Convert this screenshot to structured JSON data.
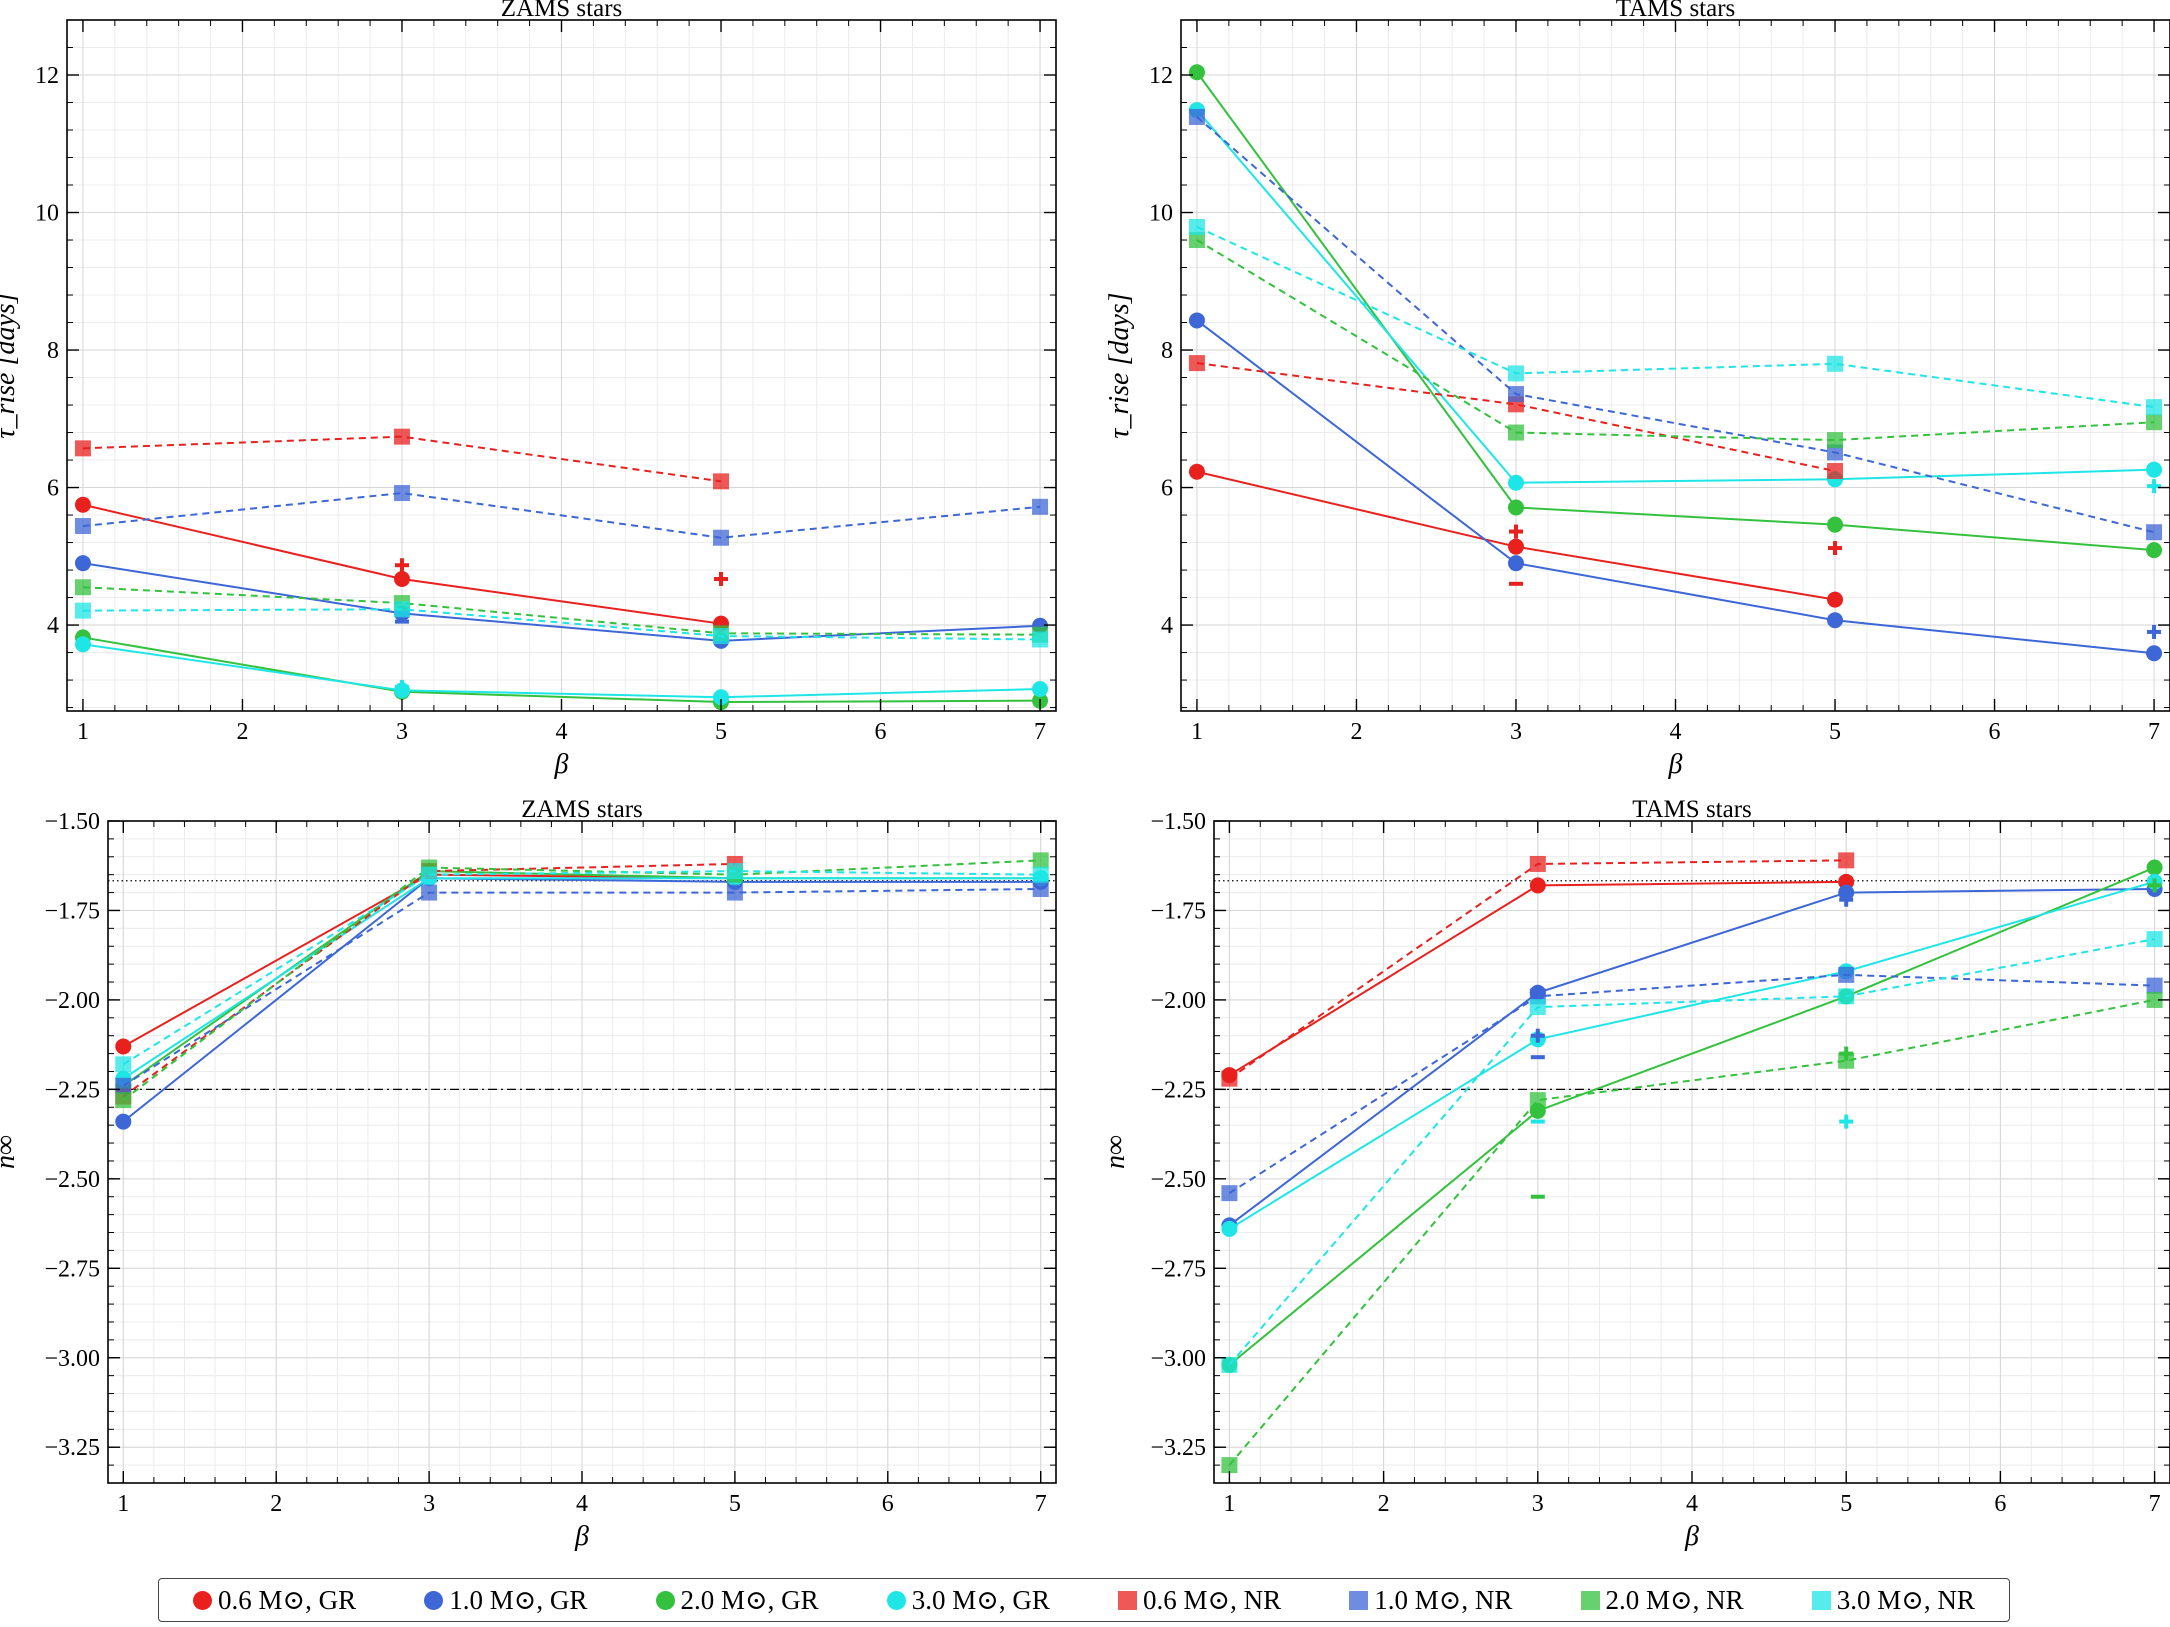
{
  "chart_data": [
    {
      "type": "line",
      "title": "ZAMS stars",
      "xlabel": "β",
      "ylabel": "τ_rise [days]",
      "xlim": [
        0.9,
        7.1
      ],
      "ylim": [
        2.75,
        12.8
      ],
      "xticks": [
        1,
        2,
        3,
        4,
        5,
        6,
        7
      ],
      "xtick_labels": [
        "1",
        "2",
        "3",
        "4",
        "5",
        "6",
        "7"
      ],
      "yticks": [
        4,
        6,
        8,
        10,
        12
      ],
      "ytick_labels": [
        "4",
        "6",
        "8",
        "10",
        "12"
      ],
      "hlines": [],
      "series": [
        {
          "name": "0.6 M⊙, GR",
          "color": "#e8201e",
          "marker": "circle",
          "linestyle": "solid",
          "x": [
            1,
            3,
            5
          ],
          "y": [
            5.75,
            4.67,
            4.02
          ]
        },
        {
          "name": "1.0 M⊙, GR",
          "color": "#3d66d6",
          "marker": "circle",
          "linestyle": "solid",
          "x": [
            1,
            3,
            5,
            7
          ],
          "y": [
            4.9,
            4.17,
            3.77,
            3.99
          ]
        },
        {
          "name": "2.0 M⊙, GR",
          "color": "#33c13e",
          "marker": "circle",
          "linestyle": "solid",
          "x": [
            1,
            3,
            5,
            7
          ],
          "y": [
            3.82,
            3.03,
            2.88,
            2.9
          ]
        },
        {
          "name": "3.0 M⊙, GR",
          "color": "#1ee6e6",
          "marker": "circle",
          "linestyle": "solid",
          "x": [
            1,
            3,
            5,
            7
          ],
          "y": [
            3.72,
            3.05,
            2.95,
            3.07
          ]
        },
        {
          "name": "0.6 M⊙, NR",
          "color": "#e8201e",
          "marker": "square",
          "linestyle": "dashed",
          "x": [
            1,
            3,
            5
          ],
          "y": [
            6.57,
            6.74,
            6.09
          ]
        },
        {
          "name": "1.0 M⊙, NR",
          "color": "#3d66d6",
          "marker": "square",
          "linestyle": "dashed",
          "x": [
            1,
            3,
            5,
            7
          ],
          "y": [
            5.44,
            5.92,
            5.27,
            5.72
          ]
        },
        {
          "name": "2.0 M⊙, NR",
          "color": "#33c13e",
          "marker": "square",
          "linestyle": "dashed",
          "x": [
            1,
            3,
            5,
            7
          ],
          "y": [
            4.55,
            4.32,
            3.88,
            3.86
          ]
        },
        {
          "name": "3.0 M⊙, NR",
          "color": "#1ee6e6",
          "marker": "square",
          "linestyle": "dashed",
          "x": [
            1,
            3,
            5,
            7
          ],
          "y": [
            4.21,
            4.23,
            3.84,
            3.79
          ]
        }
      ],
      "errors": [
        {
          "color": "#e8201e",
          "x": 3,
          "y": 4.87,
          "sym": "+"
        },
        {
          "color": "#e8201e",
          "x": 5,
          "y": 4.67,
          "sym": "+"
        },
        {
          "color": "#3d66d6",
          "x": 3,
          "y": 4.05,
          "sym": "-"
        },
        {
          "color": "#1ee6e6",
          "x": 3,
          "y": 3.1,
          "sym": "+"
        }
      ]
    },
    {
      "type": "line",
      "title": "TAMS stars",
      "xlabel": "β",
      "ylabel": "τ_rise [days]",
      "xlim": [
        0.9,
        7.1
      ],
      "ylim": [
        2.75,
        12.8
      ],
      "xticks": [
        1,
        2,
        3,
        4,
        5,
        6,
        7
      ],
      "xtick_labels": [
        "1",
        "2",
        "3",
        "4",
        "5",
        "6",
        "7"
      ],
      "yticks": [
        4,
        6,
        8,
        10,
        12
      ],
      "ytick_labels": [
        "4",
        "6",
        "8",
        "10",
        "12"
      ],
      "hlines": [],
      "series": [
        {
          "name": "0.6 M⊙, GR",
          "color": "#e8201e",
          "marker": "circle",
          "linestyle": "solid",
          "x": [
            1,
            3,
            5
          ],
          "y": [
            6.23,
            5.14,
            4.37
          ]
        },
        {
          "name": "1.0 M⊙, GR",
          "color": "#3d66d6",
          "marker": "circle",
          "linestyle": "solid",
          "x": [
            1,
            3,
            5,
            7
          ],
          "y": [
            8.43,
            4.9,
            4.07,
            3.59
          ]
        },
        {
          "name": "2.0 M⊙, GR",
          "color": "#33c13e",
          "marker": "circle",
          "linestyle": "solid",
          "x": [
            1,
            3,
            5,
            7
          ],
          "y": [
            12.04,
            5.71,
            5.46,
            5.09
          ]
        },
        {
          "name": "3.0 M⊙, GR",
          "color": "#1ee6e6",
          "marker": "circle",
          "linestyle": "solid",
          "x": [
            1,
            3,
            5,
            7
          ],
          "y": [
            11.49,
            6.07,
            6.12,
            6.26
          ]
        },
        {
          "name": "0.6 M⊙, NR",
          "color": "#e8201e",
          "marker": "square",
          "linestyle": "dashed",
          "x": [
            1,
            3,
            5
          ],
          "y": [
            7.81,
            7.21,
            6.24
          ]
        },
        {
          "name": "1.0 M⊙, NR",
          "color": "#3d66d6",
          "marker": "square",
          "linestyle": "dashed",
          "x": [
            1,
            3,
            5,
            7
          ],
          "y": [
            11.39,
            7.36,
            6.51,
            5.35
          ]
        },
        {
          "name": "2.0 M⊙, NR",
          "color": "#33c13e",
          "marker": "square",
          "linestyle": "dashed",
          "x": [
            1,
            3,
            5,
            7
          ],
          "y": [
            9.6,
            6.8,
            6.69,
            6.95
          ]
        },
        {
          "name": "3.0 M⊙, NR",
          "color": "#1ee6e6",
          "marker": "square",
          "linestyle": "dashed",
          "x": [
            1,
            3,
            5,
            7
          ],
          "y": [
            9.79,
            7.66,
            7.8,
            7.17
          ]
        }
      ],
      "errors": [
        {
          "color": "#e8201e",
          "x": 3,
          "y": 5.36,
          "sym": "+"
        },
        {
          "color": "#e8201e",
          "x": 3,
          "y": 4.6,
          "sym": "-"
        },
        {
          "color": "#e8201e",
          "x": 5,
          "y": 5.12,
          "sym": "+"
        },
        {
          "color": "#3d66d6",
          "x": 7,
          "y": 3.9,
          "sym": "+"
        },
        {
          "color": "#1ee6e6",
          "x": 7,
          "y": 6.02,
          "sym": "+"
        }
      ]
    },
    {
      "type": "line",
      "title": "ZAMS stars",
      "xlabel": "β",
      "ylabel": "n∞",
      "xlim": [
        0.9,
        7.1
      ],
      "ylim": [
        -3.35,
        -1.5
      ],
      "xticks": [
        1,
        2,
        3,
        4,
        5,
        6,
        7
      ],
      "xtick_labels": [
        "1",
        "2",
        "3",
        "4",
        "5",
        "6",
        "7"
      ],
      "yticks": [
        -1.5,
        -1.75,
        -2.0,
        -2.25,
        -2.5,
        -2.75,
        -3.0,
        -3.25
      ],
      "ytick_labels": [
        "−1.50",
        "−1.75",
        "−2.00",
        "−2.25",
        "−2.50",
        "−2.75",
        "−3.00",
        "−3.25"
      ],
      "hlines": [
        {
          "y": -1.667,
          "style": "dotted"
        },
        {
          "y": -2.25,
          "style": "dashdot"
        }
      ],
      "series": [
        {
          "name": "0.6 M⊙, GR",
          "color": "#e8201e",
          "marker": "circle",
          "linestyle": "solid",
          "x": [
            1,
            3,
            5
          ],
          "y": [
            -2.13,
            -1.65,
            -1.66
          ]
        },
        {
          "name": "1.0 M⊙, GR",
          "color": "#3d66d6",
          "marker": "circle",
          "linestyle": "solid",
          "x": [
            1,
            3,
            5,
            7
          ],
          "y": [
            -2.34,
            -1.66,
            -1.67,
            -1.67
          ]
        },
        {
          "name": "2.0 M⊙, GR",
          "color": "#33c13e",
          "marker": "circle",
          "linestyle": "solid",
          "x": [
            1,
            3,
            5,
            7
          ],
          "y": [
            -2.24,
            -1.64,
            -1.66,
            -1.66
          ]
        },
        {
          "name": "3.0 M⊙, GR",
          "color": "#1ee6e6",
          "marker": "circle",
          "linestyle": "solid",
          "x": [
            1,
            3,
            5,
            7
          ],
          "y": [
            -2.22,
            -1.66,
            -1.66,
            -1.66
          ]
        },
        {
          "name": "0.6 M⊙, NR",
          "color": "#e8201e",
          "marker": "square",
          "linestyle": "dashed",
          "x": [
            1,
            3,
            5
          ],
          "y": [
            -2.27,
            -1.64,
            -1.62
          ]
        },
        {
          "name": "1.0 M⊙, NR",
          "color": "#3d66d6",
          "marker": "square",
          "linestyle": "dashed",
          "x": [
            1,
            3,
            5,
            7
          ],
          "y": [
            -2.24,
            -1.7,
            -1.7,
            -1.69
          ]
        },
        {
          "name": "2.0 M⊙, NR",
          "color": "#33c13e",
          "marker": "square",
          "linestyle": "dashed",
          "x": [
            1,
            3,
            5,
            7
          ],
          "y": [
            -2.28,
            -1.63,
            -1.65,
            -1.61
          ]
        },
        {
          "name": "3.0 M⊙, NR",
          "color": "#1ee6e6",
          "marker": "square",
          "linestyle": "dashed",
          "x": [
            1,
            3,
            5,
            7
          ],
          "y": [
            -2.18,
            -1.65,
            -1.64,
            -1.65
          ]
        }
      ],
      "errors": []
    },
    {
      "type": "line",
      "title": "TAMS stars",
      "xlabel": "β",
      "ylabel": "n∞",
      "xlim": [
        0.9,
        7.1
      ],
      "ylim": [
        -3.35,
        -1.5
      ],
      "xticks": [
        1,
        2,
        3,
        4,
        5,
        6,
        7
      ],
      "xtick_labels": [
        "1",
        "2",
        "3",
        "4",
        "5",
        "6",
        "7"
      ],
      "yticks": [
        -1.5,
        -1.75,
        -2.0,
        -2.25,
        -2.5,
        -2.75,
        -3.0,
        -3.25
      ],
      "ytick_labels": [
        "−1.50",
        "−1.75",
        "−2.00",
        "−2.25",
        "−2.50",
        "−2.75",
        "−3.00",
        "−3.25"
      ],
      "hlines": [
        {
          "y": -1.667,
          "style": "dotted"
        },
        {
          "y": -2.25,
          "style": "dashdot"
        }
      ],
      "series": [
        {
          "name": "0.6 M⊙, GR",
          "color": "#e8201e",
          "marker": "circle",
          "linestyle": "solid",
          "x": [
            1,
            3,
            5
          ],
          "y": [
            -2.21,
            -1.68,
            -1.67
          ]
        },
        {
          "name": "1.0 M⊙, GR",
          "color": "#3d66d6",
          "marker": "circle",
          "linestyle": "solid",
          "x": [
            1,
            3,
            5,
            7
          ],
          "y": [
            -2.63,
            -1.98,
            -1.7,
            -1.69
          ]
        },
        {
          "name": "2.0 M⊙, GR",
          "color": "#33c13e",
          "marker": "circle",
          "linestyle": "solid",
          "x": [
            1,
            3,
            5,
            7
          ],
          "y": [
            -3.02,
            -2.31,
            -1.99,
            -1.63
          ]
        },
        {
          "name": "3.0 M⊙, GR",
          "color": "#1ee6e6",
          "marker": "circle",
          "linestyle": "solid",
          "x": [
            1,
            3,
            5,
            7
          ],
          "y": [
            -2.64,
            -2.11,
            -1.92,
            -1.67
          ]
        },
        {
          "name": "0.6 M⊙, NR",
          "color": "#e8201e",
          "marker": "square",
          "linestyle": "dashed",
          "x": [
            1,
            3,
            5
          ],
          "y": [
            -2.22,
            -1.62,
            -1.61
          ]
        },
        {
          "name": "1.0 M⊙, NR",
          "color": "#3d66d6",
          "marker": "square",
          "linestyle": "dashed",
          "x": [
            1,
            3,
            5,
            7
          ],
          "y": [
            -2.54,
            -1.99,
            -1.93,
            -1.96
          ]
        },
        {
          "name": "2.0 M⊙, NR",
          "color": "#33c13e",
          "marker": "square",
          "linestyle": "dashed",
          "x": [
            1,
            3,
            5,
            7
          ],
          "y": [
            -3.3,
            -2.28,
            -2.17,
            -2.0
          ]
        },
        {
          "name": "3.0 M⊙, NR",
          "color": "#1ee6e6",
          "marker": "square",
          "linestyle": "dashed",
          "x": [
            1,
            3,
            5,
            7
          ],
          "y": [
            -3.02,
            -2.02,
            -1.99,
            -1.83
          ]
        }
      ],
      "errors": [
        {
          "color": "#3d66d6",
          "x": 3,
          "y": -2.1,
          "sym": "+"
        },
        {
          "color": "#3d66d6",
          "x": 3,
          "y": -2.16,
          "sym": "-"
        },
        {
          "color": "#3d66d6",
          "x": 5,
          "y": -1.72,
          "sym": "+"
        },
        {
          "color": "#33c13e",
          "x": 3,
          "y": -2.55,
          "sym": "-"
        },
        {
          "color": "#33c13e",
          "x": 5,
          "y": -2.15,
          "sym": "+"
        },
        {
          "color": "#33c13e",
          "x": 7,
          "y": -1.68,
          "sym": "+"
        },
        {
          "color": "#1ee6e6",
          "x": 3,
          "y": -2.34,
          "sym": "-"
        },
        {
          "color": "#1ee6e6",
          "x": 5,
          "y": -2.34,
          "sym": "+"
        }
      ]
    }
  ],
  "legend": [
    {
      "label": "0.6 M⊙, GR",
      "color": "#e8201e",
      "marker": "circle"
    },
    {
      "label": "1.0 M⊙, GR",
      "color": "#3d66d6",
      "marker": "circle"
    },
    {
      "label": "2.0 M⊙, GR",
      "color": "#33c13e",
      "marker": "circle"
    },
    {
      "label": "3.0 M⊙, GR",
      "color": "#1ee6e6",
      "marker": "circle"
    },
    {
      "label": "0.6 M⊙, NR",
      "color": "#e8201e",
      "marker": "square"
    },
    {
      "label": "1.0 M⊙, NR",
      "color": "#3d66d6",
      "marker": "square"
    },
    {
      "label": "2.0 M⊙, NR",
      "color": "#33c13e",
      "marker": "square"
    },
    {
      "label": "3.0 M⊙, NR",
      "color": "#1ee6e6",
      "marker": "square"
    }
  ]
}
